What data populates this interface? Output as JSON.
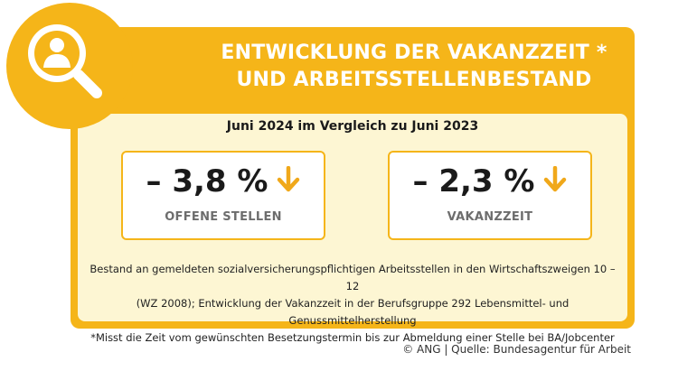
{
  "header": {
    "title_line1": "ENTWICKLUNG DER VAKANZZEIT *",
    "title_line2": "UND ARBEITSSTELLENBESTAND"
  },
  "subtitle": "Juni 2024 im Vergleich zu Juni 2023",
  "metrics": [
    {
      "value": "– 3,8 %",
      "label": "OFFENE STELLEN",
      "arrow": "arrow-down-icon"
    },
    {
      "value": "– 2,3 %",
      "label": "VAKANZZEIT",
      "arrow": "arrow-down-icon"
    }
  ],
  "footnote": {
    "line1": "Bestand an gemeldeten sozialversicherungspflichtigen Arbeitsstellen in den Wirtschaftszweigen 10 –12",
    "line2": "(WZ 2008); Entwicklung der Vakanzzeit in der Berufsgruppe 292 Lebensmittel- und Genussmittelherstellung",
    "line3": "*Misst die Zeit vom gewünschten Besetzungstermin bis zur Abmeldung einer Stelle bei BA/Jobcenter"
  },
  "source": "© ANG | Quelle: Bundesagentur für Arbeit",
  "colors": {
    "accent": "#f5b519",
    "panel": "#fdf6d3",
    "arrow": "#f0a81a"
  },
  "icon": "magnifier-person-icon"
}
